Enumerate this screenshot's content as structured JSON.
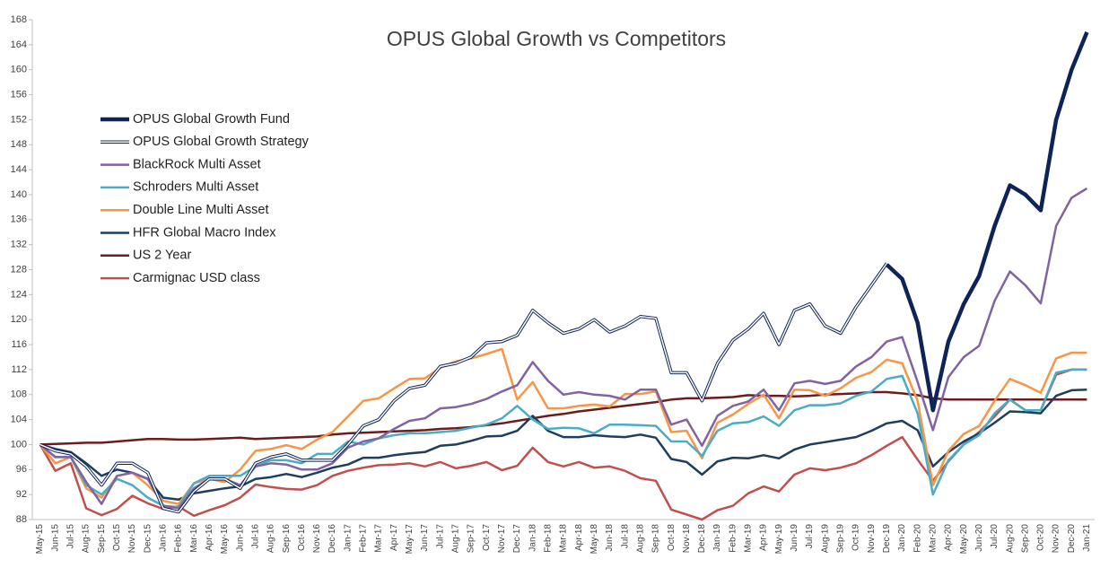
{
  "chart_data": {
    "type": "line",
    "title": "OPUS Global Growth vs Competitors",
    "categories": [
      "May-15",
      "Jun-15",
      "Jul-15",
      "Aug-15",
      "Sep-15",
      "Oct-15",
      "Nov-15",
      "Dec-15",
      "Jan-16",
      "Feb-16",
      "Mar-16",
      "Apr-16",
      "May-16",
      "Jun-16",
      "Jul-16",
      "Aug-16",
      "Sep-16",
      "Oct-16",
      "Nov-16",
      "Dec-16",
      "Jan-17",
      "Feb-17",
      "Mar-17",
      "Apr-17",
      "May-17",
      "Jun-17",
      "Jul-17",
      "Aug-17",
      "Sep-17",
      "Oct-17",
      "Nov-17",
      "Dec-17",
      "Jan-18",
      "Feb-18",
      "Mar-18",
      "Apr-18",
      "May-18",
      "Jun-18",
      "Jul-18",
      "Aug-18",
      "Sep-18",
      "Oct-18",
      "Nov-18",
      "Dec-18",
      "Jan-19",
      "Feb-19",
      "Mar-19",
      "Apr-19",
      "May-19",
      "Jun-19",
      "Jul-19",
      "Aug-19",
      "Sep-19",
      "Oct-19",
      "Nov-19",
      "Dec-19",
      "Jan-20",
      "Feb-20",
      "Mar-20",
      "Apr-20",
      "May-20",
      "Jun-20",
      "Jul-20",
      "Aug-20",
      "Sep-20",
      "Oct-20",
      "Nov-20",
      "Dec-20",
      "Jan-21"
    ],
    "series": [
      {
        "name": "OPUS Global Growth Fund",
        "color": "#0e2357",
        "width": 4.5,
        "values": [
          null,
          null,
          null,
          null,
          null,
          null,
          null,
          null,
          null,
          null,
          null,
          null,
          null,
          null,
          null,
          null,
          null,
          null,
          null,
          null,
          null,
          null,
          null,
          null,
          null,
          null,
          null,
          null,
          null,
          null,
          null,
          null,
          null,
          null,
          null,
          null,
          null,
          null,
          null,
          null,
          null,
          null,
          null,
          null,
          null,
          null,
          null,
          null,
          null,
          null,
          null,
          null,
          null,
          null,
          null,
          128.8,
          126.5,
          119.5,
          105.5,
          116.5,
          122.5,
          127,
          135,
          141.5,
          140,
          137.5,
          152,
          160,
          166
        ]
      },
      {
        "name": "OPUS Global Growth Strategy",
        "color": "#0e2357",
        "width": 3.5,
        "double": true,
        "values": [
          100,
          99,
          98.5,
          96.5,
          93.5,
          97,
          97,
          95.5,
          89.8,
          89.2,
          92.5,
          94.5,
          94.5,
          93,
          97,
          98,
          98.5,
          97.5,
          97.5,
          97.5,
          100,
          103,
          104,
          107,
          109,
          109.5,
          112.5,
          113,
          114,
          116.3,
          116.5,
          117.5,
          121.5,
          119.5,
          117.8,
          118.5,
          120,
          118,
          119,
          120.5,
          120.2,
          111.5,
          111.5,
          107,
          113,
          116.7,
          118.5,
          121,
          116,
          121.5,
          122.5,
          119,
          117.8,
          122,
          125.5,
          129,
          null,
          null,
          null,
          null,
          null,
          null,
          null,
          null,
          null,
          null,
          null,
          null,
          null
        ]
      },
      {
        "name": "BlackRock Multi Asset",
        "color": "#8064a2",
        "width": 2.5,
        "values": [
          100,
          98,
          98,
          94,
          90.5,
          95,
          95.5,
          94.5,
          90.2,
          89.8,
          93,
          94.5,
          94.5,
          93.5,
          96.5,
          97,
          96.8,
          96,
          96,
          97,
          99.5,
          100.5,
          101,
          102.5,
          103.8,
          104.2,
          105.8,
          106,
          106.5,
          107.3,
          108.5,
          109.5,
          113.2,
          110.2,
          108,
          108.4,
          108,
          107.8,
          107.2,
          108.8,
          108.8,
          103.2,
          104,
          99.8,
          104.6,
          106.2,
          106.9,
          108.8,
          105.5,
          109.8,
          110.2,
          109.7,
          110.2,
          112.5,
          114,
          116.5,
          117.2,
          110,
          102.3,
          110.8,
          114,
          115.8,
          123,
          127.7,
          125.5,
          122.6,
          135,
          139.5,
          141
        ]
      },
      {
        "name": "Schroders Multi Asset",
        "color": "#4bacc6",
        "width": 2.5,
        "values": [
          100,
          98,
          98,
          93.5,
          92,
          94.5,
          93.5,
          91.5,
          90.2,
          90,
          93.8,
          95,
          95,
          95,
          96.5,
          97.5,
          97.5,
          97,
          98.5,
          98.5,
          100.5,
          100,
          101,
          101.5,
          101.8,
          101.8,
          102,
          102.2,
          102.7,
          103.2,
          104.2,
          106.2,
          104,
          102.5,
          102.7,
          102.6,
          101.8,
          103.2,
          103.2,
          103.1,
          103,
          100.5,
          100.5,
          98.2,
          102.2,
          103.4,
          103.6,
          104.5,
          103,
          105.5,
          106.3,
          106.3,
          106.6,
          107.8,
          108.5,
          110.5,
          111,
          105,
          92,
          97.5,
          100,
          101.5,
          105,
          107.2,
          105.5,
          105.5,
          111.5,
          112,
          112
        ]
      },
      {
        "name": "Double Line Multi Asset",
        "color": "#f79646",
        "width": 2.5,
        "values": [
          100,
          97,
          98,
          93,
          91.5,
          95,
          95.5,
          93.5,
          91,
          90.5,
          93.8,
          94.5,
          94,
          96,
          99,
          99.3,
          99.9,
          99.3,
          100.8,
          102,
          104.5,
          107,
          107.4,
          109,
          110.5,
          110.6,
          112.3,
          113.3,
          113.8,
          114.5,
          115.3,
          107.2,
          110,
          105.8,
          105.8,
          106.2,
          106.4,
          106.1,
          108.1,
          108.1,
          108.5,
          102,
          102.2,
          97.8,
          103.5,
          104.8,
          106.5,
          108,
          104.2,
          108.8,
          108.7,
          107.8,
          109,
          110.7,
          111.6,
          113.6,
          113,
          107,
          93.5,
          99,
          101.7,
          103,
          107,
          110.5,
          109.5,
          108.3,
          113.8,
          114.7,
          114.7
        ]
      },
      {
        "name": "HFR Global Macro Index",
        "color": "#1f3d5e",
        "width": 2.5,
        "values": [
          100,
          99.3,
          98.8,
          97,
          95,
          96,
          95.5,
          94.5,
          91.5,
          91.2,
          92.2,
          92.6,
          93,
          93.3,
          94.5,
          94.8,
          95.3,
          94.8,
          95.5,
          96.3,
          96.8,
          97.9,
          97.9,
          98.3,
          98.6,
          98.8,
          99.8,
          100,
          100.6,
          101.3,
          101.4,
          102.2,
          104.6,
          102.2,
          101.2,
          101.2,
          101.5,
          101.3,
          101.2,
          101.6,
          101.1,
          97.7,
          97.2,
          95.2,
          97.3,
          97.9,
          97.8,
          98.3,
          97.8,
          99.2,
          100,
          100.4,
          100.8,
          101.2,
          102.2,
          103.4,
          103.8,
          102.3,
          96.5,
          98.8,
          100.5,
          101.8,
          103.5,
          105.3,
          105.2,
          105,
          107.8,
          108.7,
          108.8
        ]
      },
      {
        "name": "US 2 Year",
        "color": "#6b1d1d",
        "width": 2.5,
        "values": [
          100,
          100.1,
          100.2,
          100.3,
          100.3,
          100.5,
          100.7,
          100.9,
          100.9,
          100.8,
          100.8,
          100.9,
          101,
          101.1,
          100.9,
          101,
          101.1,
          101.2,
          101.3,
          101.6,
          101.8,
          101.9,
          102,
          102.1,
          102.2,
          102.3,
          102.5,
          102.6,
          102.8,
          103.1,
          103.4,
          103.8,
          104.2,
          104.6,
          104.9,
          105.3,
          105.6,
          105.9,
          106.2,
          106.5,
          106.8,
          107.2,
          107.4,
          107.4,
          107.5,
          107.6,
          107.9,
          107.8,
          107.8,
          107.7,
          107.8,
          108,
          108.1,
          108.2,
          108.4,
          108.4,
          108.2,
          107.9,
          107.4,
          107.2,
          107.2,
          107.2,
          107.2,
          107.2,
          107.2,
          107.2,
          107.2,
          107.2,
          107.2
        ]
      },
      {
        "name": "Carmignac USD class",
        "color": "#c0504d",
        "width": 2.5,
        "values": [
          100,
          95.8,
          97,
          89.8,
          88.7,
          89.7,
          91.8,
          90.6,
          89.7,
          90.1,
          88.6,
          89.5,
          90.3,
          91.5,
          93.6,
          93.2,
          92.9,
          92.8,
          93.5,
          95,
          95.8,
          96.3,
          96.7,
          96.8,
          97,
          96.5,
          97.2,
          96.2,
          96.6,
          97.2,
          95.9,
          96.6,
          99.5,
          97.2,
          96.5,
          97.2,
          96.3,
          96.5,
          95.8,
          94.6,
          94.2,
          89.6,
          88.8,
          88,
          89.5,
          90.2,
          92.2,
          93.3,
          92.5,
          95.2,
          96.2,
          95.9,
          96.3,
          97,
          98.3,
          99.8,
          101.2,
          97.6,
          94.2,
          97.3,
          100,
          102,
          104.5,
          107.2,
          105.5,
          105.5,
          111.2,
          112,
          112
        ]
      }
    ],
    "ylim": [
      88,
      168
    ],
    "yticks": [
      88,
      92,
      96,
      100,
      104,
      108,
      112,
      116,
      120,
      124,
      128,
      132,
      136,
      140,
      144,
      148,
      152,
      156,
      160,
      164,
      168
    ],
    "grid": false,
    "legend": "upper left"
  }
}
